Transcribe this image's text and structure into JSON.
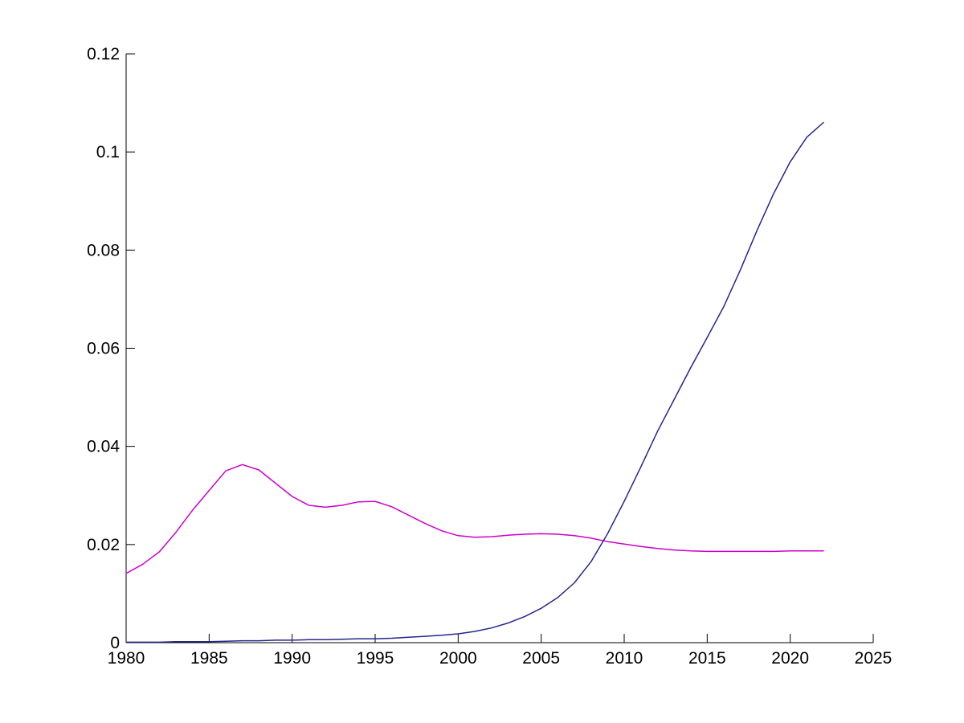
{
  "figure": {
    "background_color": "#ffffff",
    "axis_color": "#000000",
    "title": ""
  },
  "chart_data": {
    "type": "line",
    "title": "",
    "xlabel": "",
    "ylabel": "",
    "xlim": [
      1980,
      2025
    ],
    "ylim": [
      0,
      0.12
    ],
    "grid": false,
    "legend": null,
    "x_tick_labels": [
      "1980",
      "1985",
      "1990",
      "1995",
      "2000",
      "2005",
      "2010",
      "2015",
      "2020",
      "2025"
    ],
    "x_tick_values": [
      1980,
      1985,
      1990,
      1995,
      2000,
      2005,
      2010,
      2015,
      2020,
      2025
    ],
    "y_tick_labels": [
      "0",
      "0.02",
      "0.04",
      "0.06",
      "0.08",
      "0.1",
      "0.12"
    ],
    "y_tick_values": [
      0,
      0.02,
      0.04,
      0.06,
      0.08,
      0.1,
      0.12
    ],
    "x": [
      1980,
      1981,
      1982,
      1983,
      1984,
      1985,
      1986,
      1987,
      1988,
      1989,
      1990,
      1991,
      1992,
      1993,
      1994,
      1995,
      1996,
      1997,
      1998,
      1999,
      2000,
      2001,
      2002,
      2003,
      2004,
      2005,
      2006,
      2007,
      2008,
      2009,
      2010,
      2011,
      2012,
      2013,
      2014,
      2015,
      2016,
      2017,
      2018,
      2019,
      2020,
      2021,
      2022
    ],
    "series": [
      {
        "name": "magenta-line",
        "color": "#CC00CC",
        "values": [
          0.0141,
          0.016,
          0.0185,
          0.0225,
          0.027,
          0.031,
          0.035,
          0.0363,
          0.0352,
          0.0325,
          0.0298,
          0.028,
          0.0276,
          0.028,
          0.0287,
          0.0288,
          0.0277,
          0.026,
          0.0243,
          0.0228,
          0.0218,
          0.0215,
          0.0216,
          0.0219,
          0.0221,
          0.0222,
          0.0221,
          0.0218,
          0.0213,
          0.0206,
          0.0201,
          0.0196,
          0.0192,
          0.0189,
          0.0187,
          0.0186,
          0.0186,
          0.0186,
          0.0186,
          0.0186,
          0.0187,
          0.0187,
          0.0187
        ]
      },
      {
        "name": "blue-line",
        "color": "#26268B",
        "values": [
          0.0001,
          0.0001,
          0.0001,
          0.0002,
          0.0002,
          0.0002,
          0.0003,
          0.0004,
          0.0004,
          0.0005,
          0.0005,
          0.0006,
          0.0006,
          0.0007,
          0.0008,
          0.0008,
          0.0009,
          0.0011,
          0.0013,
          0.0015,
          0.0018,
          0.0023,
          0.003,
          0.004,
          0.0053,
          0.007,
          0.0092,
          0.0122,
          0.0165,
          0.0222,
          0.0288,
          0.0358,
          0.043,
          0.0495,
          0.056,
          0.0622,
          0.0685,
          0.076,
          0.084,
          0.0915,
          0.098,
          0.103,
          0.106
        ]
      }
    ]
  }
}
